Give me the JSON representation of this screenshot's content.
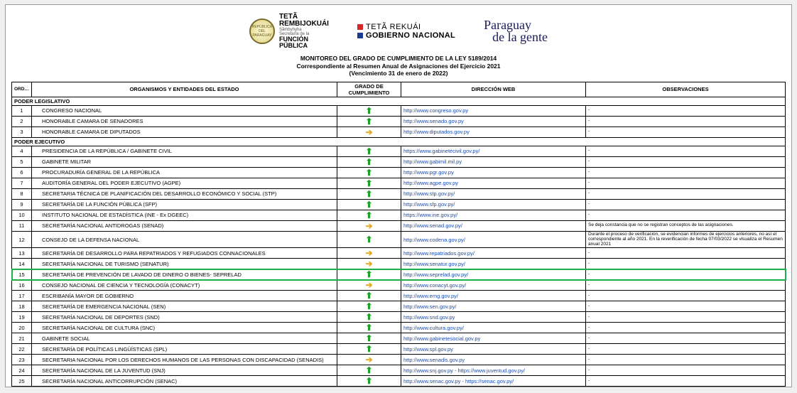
{
  "header": {
    "seal_text": "REPÚBLICA DEL PARAGUAY",
    "teta": {
      "l1": "TETÃ",
      "l2": "REMBIJOKUÁI",
      "l3": "Sãmbyhyha",
      "l4": "Secretaría de la",
      "l5": "FUNCIÓN",
      "l6": "PÚBLICA"
    },
    "gobnac": {
      "sq1_color": "#d62828",
      "sq2_color": "#1a3b8f",
      "l1": "TETÃ REKUÁI",
      "l2": "GOBIERNO NACIONAL"
    },
    "slogan_l1": "Paraguay",
    "slogan_l2": "de la gente"
  },
  "title": {
    "l1": "MONITOREO DEL GRADO DE CUMPLIMIENTO DE LA LEY 5189/2014",
    "l2": "Correspondiente al Resumen Anual de Asignaciones del Ejercicio 2021",
    "l3": "(Vencimiento 31 de enero de 2022)"
  },
  "columns": {
    "orden": "ORDEN",
    "org": "ORGANISMOS Y ENTIDADES DEL ESTADO",
    "grado_l1": "GRADO DE",
    "grado_l2": "CUMPLIMIENTO",
    "web": "DIRECCIÓN WEB",
    "obs": "OBSERVACIONES"
  },
  "sections": {
    "legislativo": {
      "label": "PODER LEGISLATIVO",
      "rows": [
        {
          "n": "1",
          "org": "CONGRESO NACIONAL",
          "gr": "up",
          "web": "http://www.congreso.gov.py",
          "obs": "-"
        },
        {
          "n": "2",
          "org": "HONORABLE CAMARA DE SENADORES",
          "gr": "up",
          "web": "http://www.senado.gov.py",
          "obs": "-"
        },
        {
          "n": "3",
          "org": "HONORABLE CAMARA DE DIPUTADOS",
          "gr": "rt",
          "web": "http://www.diputados.gov.py",
          "obs": "-"
        }
      ]
    },
    "ejecutivo": {
      "label": "PODER EJECUTIVO",
      "rows": [
        {
          "n": "4",
          "org": "PRESIDENCIA DE LA REPÚBLICA  / GABINETE CIVIL",
          "gr": "up",
          "web": "https://www.gabinetecivil.gov.py/",
          "obs": "-"
        },
        {
          "n": "5",
          "org": "GABINETE MILITAR",
          "gr": "up",
          "web": "http://www.gabimil.mil.py",
          "obs": "-"
        },
        {
          "n": "6",
          "org": "PROCURADURÍA GENERAL DE LA REPÚBLICA",
          "gr": "up",
          "web": "http://www.pgr.gov.py",
          "obs": "-"
        },
        {
          "n": "7",
          "org": "AUDITORÍA GENERAL DEL PODER EJECUTIVO (AGPE)",
          "gr": "up",
          "web": "http://www.agpe.gov.py",
          "obs": "-"
        },
        {
          "n": "8",
          "org": "SECRETARIA TÉCNICA DE PLANIFICACIÓN DEL DESARROLLO ECONÓMICO Y SOCIAL (STP)",
          "gr": "up",
          "web": "http://www.stp.gov.py/",
          "obs": "-"
        },
        {
          "n": "9",
          "org": "SECRETARÍA DE LA FUNCIÓN PÚBLICA (SFP)",
          "gr": "up",
          "web": "http://www.sfp.gov.py/",
          "obs": "-"
        },
        {
          "n": "10",
          "org": "INSTITUTO NACIONAL DE ESTADÍSTICA (INE - Ex DGEEC)",
          "gr": "up",
          "web": "https://www.ine.gov.py/",
          "obs": "-"
        },
        {
          "n": "11",
          "org": "SECRETARÍA NACIONAL ANTIDROGAS (SENAD)",
          "gr": "rt",
          "web": "http://www.senad.gov.py/",
          "obs": "Se deja constancia que no se registran conceptos de las asignaciones."
        },
        {
          "n": "12",
          "org": "CONSEJO DE LA DEFENSA NACIONAL",
          "gr": "up",
          "web": "http://www.codena.gov.py/",
          "obs": "Durante el proceso de verificación, se evidencian informes de ejercicios anteriores, no así el correspondiente al año 2021. En la reverificación de fecha 07/03/2022 se visualiza el Resumen anual 2021"
        },
        {
          "n": "13",
          "org": "SECRETARÍA DE DESARROLLO PARA REPATRIADOS Y REFUGIADOS CONNACIONALES",
          "gr": "rt",
          "web": "http://www.repatriados.gov.py/",
          "obs": "-"
        },
        {
          "n": "14",
          "org": "SECRETARÍA NACIONAL DE TURISMO (SENATUR)",
          "gr": "rt",
          "web": "http://www.senatur.gov.py/",
          "obs": "-"
        },
        {
          "n": "15",
          "org": "SECRETARÍA DE PREVENCIÓN DE LAVADO DE DINERO O BIENES- SEPRELAD",
          "gr": "up",
          "web": "http://www.seprelad.gov.py/",
          "obs": "-",
          "hl": true
        },
        {
          "n": "16",
          "org": "CONSEJO NACIONAL DE CIENCIA Y TECNOLOGÍA (CONACYT)",
          "gr": "rt",
          "web": "http://www.conacyt.gov.py/",
          "obs": "-"
        },
        {
          "n": "17",
          "org": "ESCRIBANÍA MAYOR DE GOBIERNO",
          "gr": "up",
          "web": "http://www.emg.gov.py/",
          "obs": "-"
        },
        {
          "n": "18",
          "org": "SECRETARÍA DE EMERGENCIA NACIONAL (SEN)",
          "gr": "up",
          "web": "http://www.sen.gov.py/",
          "obs": "-"
        },
        {
          "n": "19",
          "org": "SECRETARÍA NACIONAL DE DEPORTES (SND)",
          "gr": "up",
          "web": "http://www.snd.gov.py",
          "obs": "-"
        },
        {
          "n": "20",
          "org": "SECRETARÍA NACIONAL DE CULTURA (SNC)",
          "gr": "up",
          "web": "http://www.cultura.gov.py/",
          "obs": "-"
        },
        {
          "n": "21",
          "org": "GABINETE SOCIAL",
          "gr": "up",
          "web": "http://www.gabinetesocial.gov.py",
          "obs": "-"
        },
        {
          "n": "22",
          "org": "SECRETARÍA DE POLÍTICAS LINGÜÍSTICAS (SPL)",
          "gr": "up",
          "web": "http://www.spl.gov.py",
          "obs": "-"
        },
        {
          "n": "23",
          "org": "SECRETARIA NACIONAL POR LOS DERECHOS HUMANOS DE LAS PERSONAS CON DISCAPACIDAD (SENADIS)",
          "gr": "rt",
          "web": "http://www.senadis.gov.py",
          "obs": "-"
        },
        {
          "n": "24",
          "org": "SECRETARÍA NACIONAL DE LA JUVENTUD (SNJ)",
          "gr": "up",
          "web": "http://www.snj.gov.py - https://www.juventud.gov.py/",
          "obs": "-"
        },
        {
          "n": "25",
          "org": "SECRETARÍA NACIONAL ANTICORRUPCIÓN (SENAC)",
          "gr": "up",
          "web": "http://www.senac.gov.py - https://senac.gov.py/",
          "obs": "-"
        }
      ]
    }
  },
  "arrows": {
    "up": "⬆",
    "rt": "➔"
  }
}
